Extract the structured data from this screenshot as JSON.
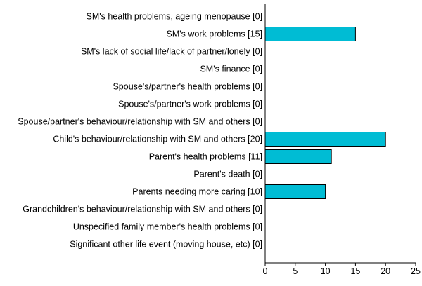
{
  "chart_data": {
    "type": "bar",
    "orientation": "horizontal",
    "categories": [
      "SM's health problems, ageing menopause [0]",
      "SM's work problems [15]",
      "SM's lack of social life/lack of partner/lonely [0]",
      "SM's finance [0]",
      "Spouse's/partner's health problems [0]",
      "Spouse's/partner's work problems [0]",
      "Spouse/partner's behaviour/relationship with SM and others [0]",
      "Child's behaviour/relationship with SM and others [20]",
      "Parent's health problems [11]",
      "Parent's death [0]",
      "Parents needing more caring [10]",
      "Grandchildren's behaviour/relationship with SM and others [0]",
      "Unspecified family member's health problems [0]",
      "Significant other life event (moving house, etc) [0]"
    ],
    "values": [
      0,
      15,
      0,
      0,
      0,
      0,
      0,
      20,
      11,
      0,
      10,
      0,
      0,
      0
    ],
    "xlim": [
      0,
      25
    ],
    "xticks": [
      "0",
      "5",
      "10",
      "15",
      "20",
      "25"
    ],
    "xlabel": "",
    "ylabel": "",
    "title": "",
    "grid": false,
    "legend": "none",
    "colors": {
      "bar_fill": "#00bcd4",
      "bar_stroke": "#000000",
      "axis": "#000000"
    }
  }
}
